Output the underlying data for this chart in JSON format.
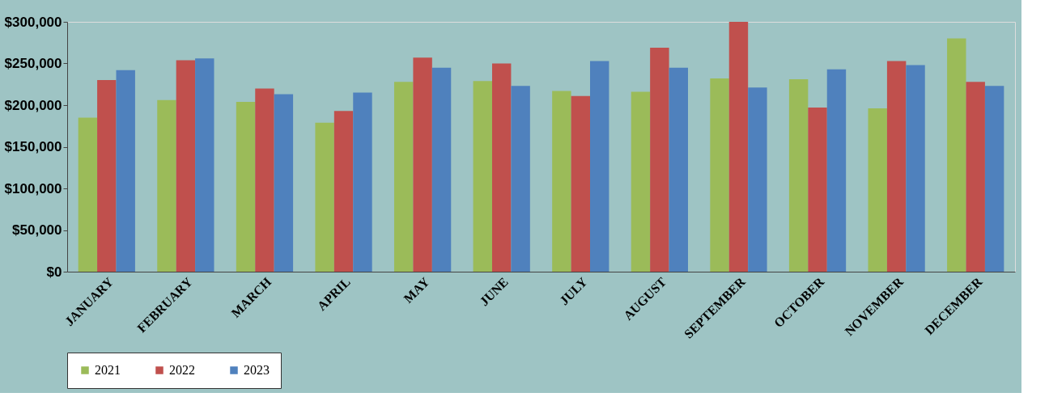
{
  "chart_data": {
    "type": "bar",
    "categories": [
      "JANUARY",
      "FEBRUARY",
      "MARCH",
      "APRIL",
      "MAY",
      "JUNE",
      "JULY",
      "AUGUST",
      "SEPTEMBER",
      "OCTOBER",
      "NOVEMBER",
      "DECEMBER"
    ],
    "series": [
      {
        "name": "2021",
        "color": "#9bbb59",
        "values": [
          185000,
          206000,
          204000,
          179000,
          228000,
          229000,
          217000,
          216000,
          232000,
          231000,
          196000,
          280000
        ]
      },
      {
        "name": "2022",
        "color": "#c0504d",
        "values": [
          230000,
          254000,
          220000,
          193000,
          257000,
          250000,
          211000,
          269000,
          300000,
          197000,
          253000,
          228000
        ]
      },
      {
        "name": "2023",
        "color": "#4f81bd",
        "values": [
          242000,
          256000,
          213000,
          215000,
          245000,
          223000,
          253000,
          245000,
          221000,
          243000,
          248000,
          223000
        ]
      }
    ],
    "ylim": [
      0,
      300000
    ],
    "yticks": [
      {
        "value": 0,
        "label": "$0"
      },
      {
        "value": 50000,
        "label": "$50,000"
      },
      {
        "value": 100000,
        "label": "$100,000"
      },
      {
        "value": 150000,
        "label": "$150,000"
      },
      {
        "value": 200000,
        "label": "$200,000"
      },
      {
        "value": 250000,
        "label": "$250,000"
      },
      {
        "value": 300000,
        "label": "$300,000"
      }
    ],
    "grid": false,
    "legend": "bottom"
  }
}
